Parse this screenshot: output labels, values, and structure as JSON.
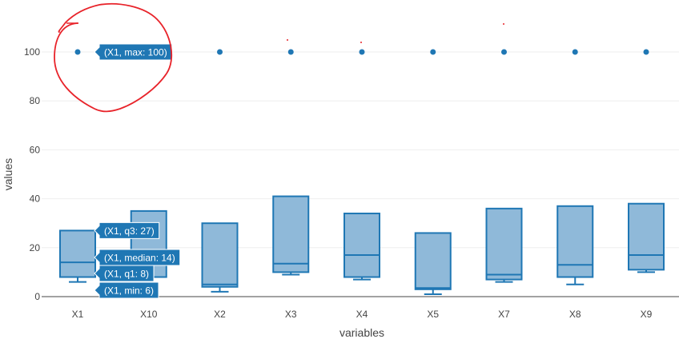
{
  "chart_data": {
    "type": "box",
    "xlabel": "variables",
    "ylabel": "values",
    "ylim": [
      -2,
      118
    ],
    "yticks": [
      0,
      20,
      40,
      60,
      80,
      100
    ],
    "grid": true,
    "categories": [
      "X1",
      "X10",
      "X2",
      "X3",
      "X4",
      "X5",
      "X7",
      "X8",
      "X9"
    ],
    "boxes": [
      {
        "min": 6,
        "q1": 8,
        "median": 14,
        "q3": 27,
        "whisker_high": 27,
        "outliers": [
          100
        ]
      },
      {
        "min": 8,
        "q1": 8,
        "median": 8,
        "q3": 35,
        "whisker_high": 35,
        "outliers": []
      },
      {
        "min": 2,
        "q1": 4,
        "median": 5,
        "q3": 30,
        "whisker_high": 30,
        "outliers": [
          100
        ]
      },
      {
        "min": 9,
        "q1": 10,
        "median": 13.5,
        "q3": 41,
        "whisker_high": 41,
        "outliers": [
          100
        ]
      },
      {
        "min": 7,
        "q1": 8,
        "median": 17,
        "q3": 34,
        "whisker_high": 34,
        "outliers": [
          100
        ]
      },
      {
        "min": 1,
        "q1": 3,
        "median": 3.5,
        "q3": 26,
        "whisker_high": 26,
        "outliers": [
          100
        ]
      },
      {
        "min": 6,
        "q1": 7,
        "median": 9,
        "q3": 36,
        "whisker_high": 36,
        "outliers": [
          100
        ]
      },
      {
        "min": 5,
        "q1": 8,
        "median": 13,
        "q3": 37,
        "whisker_high": 37,
        "outliers": [
          100
        ]
      },
      {
        "min": 10,
        "q1": 11,
        "median": 17,
        "q3": 38,
        "whisker_high": 38,
        "outliers": [
          100
        ]
      }
    ],
    "tooltips": [
      {
        "label": "(X1, max: 100)",
        "value": 100
      },
      {
        "label": "(X1, q3: 27)",
        "value": 27
      },
      {
        "label": "(X1, median: 14)",
        "value": 14
      },
      {
        "label": "(X1, q1: 8)",
        "value": 8
      },
      {
        "label": "(X1, min: 6)",
        "value": 6
      }
    ],
    "colors": {
      "box_line": "#1f77b4",
      "box_fill": "#8fb9d9",
      "grid": "#eeeeee",
      "axis": "#444444",
      "tooltip_bg": "#1f77b4",
      "annotation": "#e8232a"
    }
  }
}
